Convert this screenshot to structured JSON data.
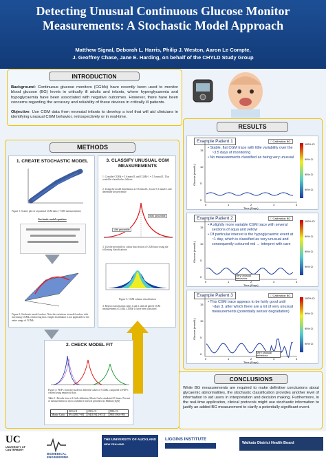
{
  "title_line1": "Detecting Unusual Continuous Glucose Monitor",
  "title_line2": "Measurements: A Stochastic Model Approach",
  "authors_line1": "Matthew Signal, Deborah L. Harris, Philip J. Weston, Aaron Le Compte,",
  "authors_line2": "J. Geoffrey Chase, Jane E. Harding, on behalf of the CHYLD Study Group",
  "intro": {
    "heading": "INTRODUCTION",
    "bg_label": "Background",
    "bg_text": ": Continuous glucose monitors (CGMs) have recently been used to monitor blood glucose (BG) levels in critically ill adults and infants, where hyperglycaemia and hypoglycaemia have been associated with negative outcomes. However, there have been concerns regarding the accuracy and reliability of these devices in critically ill patients.",
    "obj_label": "Objective",
    "obj_text": ": Use CGM data from neonatal infants to develop a tool that will aid clinicians in identifying unusual CGM behavior, retrospectively or in real-time."
  },
  "methods": {
    "heading": "METHODS",
    "step1": "1. CREATE STOCHASTIC MODEL",
    "step2": "2. CHECK MODEL FIT",
    "step3_line1": "3. CLASSIFY UNUSUAL CGM",
    "step3_line2": "MEASUREMENTS",
    "stoch_label": "Stochastic model equations",
    "cap1": "Figure 1: Scatter plot of sequential CGM data (>7,000 measurements)",
    "cap2": "Figure 2: Stochastic model surface. Note the variations in model surface with increasing CGMk, reinforcing that a single distribution is not applicable to the entire range of CGMk",
    "cap3": "Figure 3: CGM column classification",
    "cap4": "Figure 4: PDF's from the model at different values of CGMk, compared to PDF's created using empirical data",
    "cap5": "Table 1: Results from a 3-fold validation, Monte Carlo simulated 25 times. Percent of measurements in each confidence interval presented as Median [IQR]",
    "p90_label": "90th percentile",
    "p10_label": "10th percentile",
    "table_headers": [
      "",
      "90% CI",
      "95% CI",
      "99% CI"
    ],
    "table_row": [
      "Monte Carlo",
      "89.4 [88.7-90]",
      "94.8 [94.3-95.3]",
      "98.8 [98.6-99]"
    ],
    "step_desc": "1. Consider CGMk = 5.6 mmol/L and CGMk-1 = 5.3 mmol/L. This would be classified as follows:",
    "step_desc2": "2. Using the model distribution at 5.6 mmol/L, locate 5.3 mmol/L and determine the percentile",
    "step_desc3": "3. Use the percentile to colour that section of CGM trace using the following classifications:",
    "step_desc4": "4. Repeat classification steps 1 and 2 until all paired CGM measurements (CGMk, CGMk-1) have been classified"
  },
  "results": {
    "heading": "RESULTS",
    "patients": [
      {
        "label": "Example Patient 1",
        "bullets": [
          "Stable, flat CGM trace with little variability over the ~3.5 days of monitoring",
          "No measurements classified as being very unusual"
        ],
        "annot": ""
      },
      {
        "label": "Example Patient 2",
        "bullets": [
          "A slightly more variable CGM trace with several sections of aqua and yellow",
          "Of particular interest is the hypoglycaemic event at ~1 day, which is classified as very unusual and consequently coloured red → interpret with care"
        ],
        "annot": "Very unusual behaviour"
      },
      {
        "label": "Example Patient 3",
        "bullets": [
          "This CGM trace appears to be fairly good until ~day 3, after which there are a lot of very unusual measurements (potentially sensor degradation)"
        ],
        "annot": "Very unusual behaviour"
      }
    ],
    "legend_bg": "Calibration BG",
    "ci_labels": [
      "100% CI",
      "99% CI",
      "95% CI",
      "90% CI"
    ],
    "ylabel": "Glucose (mmol/L)",
    "xlabel": "Time (Days)",
    "yticks": [
      "15",
      "10",
      "5",
      "0"
    ],
    "xticks": [
      "0",
      "1",
      "2",
      "3",
      "4"
    ]
  },
  "conclusions": {
    "heading": "CONCLUSIONS",
    "text": "While BG measurements are required to make definitive conclusions about glycaemic abnormalities, the stochastic classification provides another level of information to aid users in interpretation and decision making. Furthermore, in the real-time application, clinical protocols might use stochastic information to justify an added BG measurement to clarify a potentially significant event."
  },
  "logos": {
    "uc": "UC",
    "uc_sub": "UNIVERSITY OF CANTERBURY",
    "bio": "BIOMEDICAL ENGINEERING",
    "akl": "THE UNIVERSITY OF AUCKLAND",
    "akl_sub": "NEW ZEALAND",
    "liggins": "LIGGINS INSTITUTE",
    "waikato": "Waikato District Health Board"
  },
  "colors": {
    "header": "#1d4f96",
    "border": "#f2c200",
    "arrow": "#e3b400"
  }
}
